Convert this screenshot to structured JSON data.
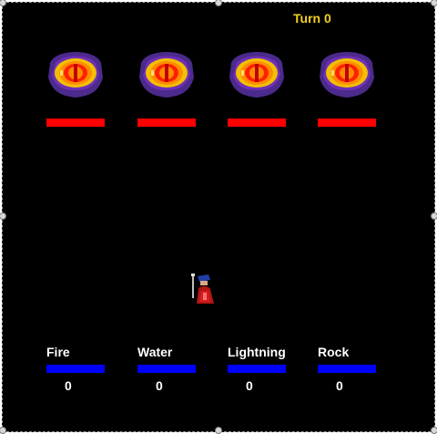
{
  "turn": {
    "label": "Turn 0"
  },
  "colors": {
    "background": "#000000",
    "turn_text": "#f2d024",
    "health": "#ff0000",
    "mana": "#0000ff"
  },
  "enemies": [
    {
      "icon": "dragon-eye-icon",
      "health_fraction": 1.0
    },
    {
      "icon": "dragon-eye-icon",
      "health_fraction": 1.0
    },
    {
      "icon": "dragon-eye-icon",
      "health_fraction": 1.0
    },
    {
      "icon": "dragon-eye-icon",
      "health_fraction": 1.0
    }
  ],
  "hero": {
    "icon": "wizard-icon"
  },
  "spells": [
    {
      "label": "Fire",
      "count": "0",
      "mana_fraction": 1.0
    },
    {
      "label": "Water",
      "count": "0",
      "mana_fraction": 1.0
    },
    {
      "label": "Lightning",
      "count": "0",
      "mana_fraction": 1.0
    },
    {
      "label": "Rock",
      "count": "0",
      "mana_fraction": 1.0
    }
  ]
}
